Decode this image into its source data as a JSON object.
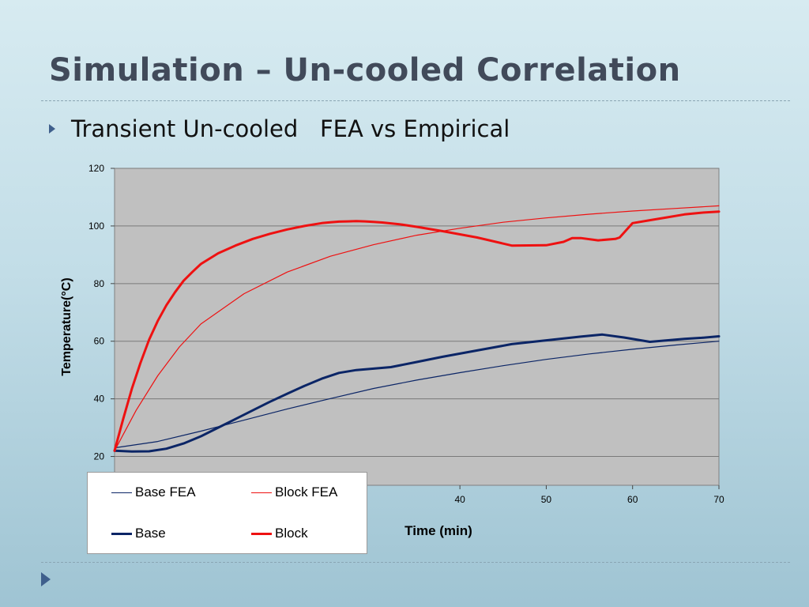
{
  "slide": {
    "title": "Simulation – Un-cooled Correlation",
    "bullet": "Transient Un-cooled   FEA vs Empirical"
  },
  "colors": {
    "plot_bg": "#c0c0c0",
    "gridline": "#7a7a7a",
    "base_color": "#0b2566",
    "block_color": "#ee1111"
  },
  "chart_data": {
    "type": "line",
    "title": "",
    "xlabel": "Time (min)",
    "ylabel": "Temperature(°C)",
    "xlim": [
      0,
      70
    ],
    "ylim": [
      10,
      120
    ],
    "yticks": [
      20,
      40,
      60,
      80,
      100,
      120
    ],
    "xticks": [
      40,
      50,
      60,
      70
    ],
    "grid": true,
    "legend_position": "bottom-left",
    "series": [
      {
        "name": "Base FEA",
        "style": "thin",
        "color": "#0b2566",
        "x": [
          0,
          5,
          10,
          15,
          20,
          25,
          30,
          35,
          40,
          45,
          50,
          55,
          60,
          65,
          70
        ],
        "y": [
          23.0,
          25.2,
          28.8,
          32.6,
          36.5,
          40.1,
          43.6,
          46.5,
          49.1,
          51.5,
          53.7,
          55.6,
          57.2,
          58.7,
          60.0
        ]
      },
      {
        "name": "Block FEA",
        "style": "thin",
        "color": "#ee1111",
        "x": [
          0,
          2.5,
          5,
          7.5,
          10,
          15,
          20,
          25,
          30,
          35,
          40,
          45,
          50,
          55,
          60,
          65,
          70
        ],
        "y": [
          22.0,
          36.0,
          48.0,
          58.0,
          66.0,
          76.5,
          84.0,
          89.5,
          93.5,
          96.8,
          99.2,
          101.3,
          102.8,
          104.1,
          105.2,
          106.1,
          107.0
        ]
      },
      {
        "name": "Base",
        "style": "thick",
        "color": "#0b2566",
        "x": [
          0,
          2,
          4,
          6,
          8,
          10,
          12,
          14,
          16,
          18,
          20,
          22,
          24,
          26,
          28,
          30,
          32,
          35,
          38,
          42,
          46,
          50,
          54,
          56.5,
          59,
          62,
          64,
          66,
          68,
          70
        ],
        "y": [
          22.0,
          21.7,
          21.8,
          22.7,
          24.5,
          27.0,
          30.0,
          33.0,
          36.0,
          39.0,
          41.8,
          44.5,
          47.0,
          49.0,
          50.0,
          50.5,
          51.0,
          52.8,
          54.6,
          56.8,
          59.0,
          60.3,
          61.6,
          62.3,
          61.3,
          59.8,
          60.3,
          60.8,
          61.2,
          61.7
        ]
      },
      {
        "name": "Block",
        "style": "thick",
        "color": "#ee1111",
        "x": [
          0,
          1,
          2,
          3,
          4,
          5,
          6,
          7,
          8,
          9,
          10,
          12,
          14,
          16,
          18,
          20,
          22,
          24,
          25,
          26,
          27,
          28,
          29,
          30,
          31,
          33,
          35,
          38,
          42,
          46,
          50,
          52,
          53,
          54,
          56,
          58,
          58.5,
          60,
          62,
          64,
          66,
          68,
          70
        ],
        "y": [
          22.0,
          33.0,
          43.5,
          52.5,
          60.5,
          67.0,
          72.5,
          77.0,
          81.0,
          84.0,
          86.8,
          90.5,
          93.2,
          95.5,
          97.3,
          98.8,
          100.0,
          101.0,
          101.3,
          101.5,
          101.6,
          101.7,
          101.6,
          101.4,
          101.2,
          100.6,
          99.7,
          98.2,
          96.0,
          93.2,
          93.3,
          94.5,
          95.8,
          95.8,
          95.0,
          95.5,
          96.0,
          101.0,
          102.0,
          103.0,
          104.0,
          104.6,
          105.0
        ]
      }
    ]
  }
}
